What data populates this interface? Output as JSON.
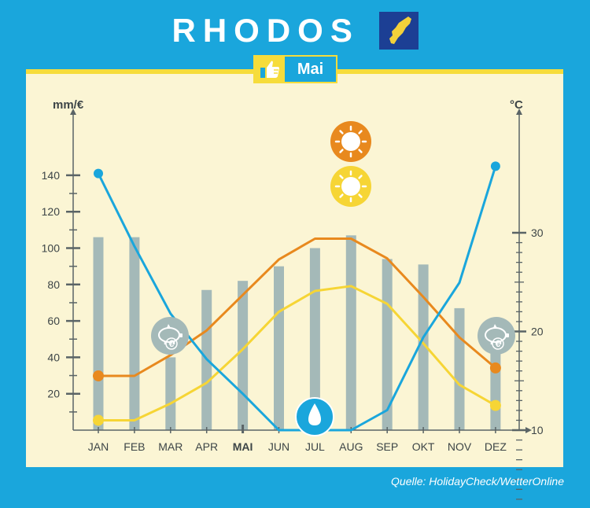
{
  "header": {
    "title": "RHODOS",
    "month_label": "Mai",
    "source": "Quelle: HolidayCheck/WetterOnline"
  },
  "icons": [
    "flag-icon",
    "thumbs-up-icon",
    "sun-icon",
    "piggy-bank-icon",
    "rain-drop-icon"
  ],
  "colors": {
    "background": "#1aa6dc",
    "panel": "#fbf5d4",
    "accent": "#f6dc3b",
    "bars": "#a4b9b8",
    "price_line": "#1aa6dc",
    "max_temp": "#e8891e",
    "min_temp": "#f6d535",
    "axis": "#5a6466"
  },
  "chart_data": {
    "type": "bar",
    "categories": [
      "JAN",
      "FEB",
      "MAR",
      "APR",
      "MAI",
      "JUN",
      "JUL",
      "AUG",
      "SEP",
      "OKT",
      "NOV",
      "DEZ"
    ],
    "highlight_category": "MAI",
    "left_axis": {
      "label": "mm/€",
      "range": [
        0,
        150
      ],
      "ticks": [
        20,
        40,
        60,
        80,
        100,
        120,
        140
      ]
    },
    "right_axis": {
      "label": "°C",
      "range": [
        0,
        30
      ],
      "ticks": [
        10,
        20,
        30
      ]
    },
    "series": [
      {
        "kind": "bar",
        "axis": "left",
        "values": [
          106,
          106,
          40,
          77,
          82,
          90,
          100,
          107,
          94,
          91,
          67,
          46
        ]
      },
      {
        "kind": "line",
        "axis": "left",
        "values": [
          141,
          101,
          64,
          39,
          20,
          0,
          0,
          0,
          11,
          51,
          81,
          145
        ]
      },
      {
        "kind": "line",
        "axis": "right",
        "values": [
          15.5,
          15.5,
          17.6,
          20.1,
          23.7,
          27.3,
          29.4,
          29.4,
          27.4,
          23.5,
          19.4,
          16.3
        ]
      },
      {
        "kind": "line",
        "axis": "right",
        "values": [
          11.0,
          11.0,
          12.7,
          14.8,
          18.2,
          22.0,
          24.1,
          24.6,
          22.8,
          18.8,
          14.6,
          12.5
        ]
      }
    ],
    "grid": false,
    "legend": "none"
  }
}
